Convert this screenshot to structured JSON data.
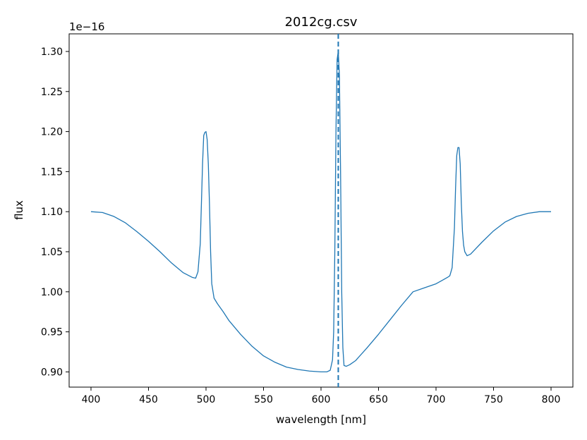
{
  "chart_data": {
    "type": "line",
    "title": "2012cg.csv",
    "xlabel": "wavelength [nm]",
    "ylabel": "flux",
    "y_offset_text": "1e−16",
    "xlim": [
      381,
      819
    ],
    "ylim": [
      0.881,
      1.322
    ],
    "y_scale_factor": "1e-16",
    "x_ticks": [
      400,
      450,
      500,
      550,
      600,
      650,
      700,
      750,
      800
    ],
    "y_ticks": [
      0.9,
      0.95,
      1.0,
      1.05,
      1.1,
      1.15,
      1.2,
      1.25,
      1.3
    ],
    "x_tick_labels": [
      "400",
      "450",
      "500",
      "550",
      "600",
      "650",
      "700",
      "750",
      "800"
    ],
    "y_tick_labels": [
      "0.90",
      "0.95",
      "1.00",
      "1.05",
      "1.10",
      "1.15",
      "1.20",
      "1.25",
      "1.30"
    ],
    "grid": false,
    "series_color": "#1f77b4",
    "series": [
      {
        "x": [
          400,
          410,
          420,
          430,
          440,
          450,
          460,
          470,
          480,
          488,
          491,
          493,
          495,
          496,
          497,
          498,
          499,
          500,
          501,
          502,
          503,
          504,
          505,
          507,
          510,
          515,
          520,
          530,
          540,
          550,
          560,
          570,
          580,
          590,
          600,
          605,
          608,
          610,
          611,
          612,
          613,
          614,
          615,
          616,
          617,
          618,
          619,
          620,
          622,
          625,
          630,
          640,
          650,
          660,
          670,
          680,
          690,
          700,
          705,
          710,
          712,
          714,
          716,
          717,
          718,
          719,
          720,
          721,
          722,
          723,
          724,
          725,
          727,
          730,
          740,
          750,
          760,
          770,
          780,
          790,
          800
        ],
        "y": [
          1.1,
          1.099,
          1.094,
          1.086,
          1.075,
          1.063,
          1.05,
          1.036,
          1.024,
          1.018,
          1.017,
          1.025,
          1.06,
          1.11,
          1.16,
          1.195,
          1.199,
          1.2,
          1.19,
          1.16,
          1.11,
          1.05,
          1.01,
          0.992,
          0.985,
          0.975,
          0.964,
          0.947,
          0.932,
          0.92,
          0.912,
          0.906,
          0.903,
          0.901,
          0.9,
          0.9,
          0.902,
          0.915,
          0.95,
          1.05,
          1.2,
          1.29,
          1.3,
          1.27,
          1.15,
          1.0,
          0.93,
          0.908,
          0.907,
          0.909,
          0.914,
          0.93,
          0.947,
          0.965,
          0.983,
          1.0,
          1.005,
          1.01,
          1.014,
          1.018,
          1.02,
          1.03,
          1.08,
          1.13,
          1.17,
          1.18,
          1.18,
          1.16,
          1.11,
          1.075,
          1.058,
          1.05,
          1.045,
          1.047,
          1.062,
          1.076,
          1.087,
          1.094,
          1.098,
          1.1,
          1.1
        ]
      }
    ],
    "vertical_line": {
      "x": 615,
      "style": "dashed"
    }
  }
}
